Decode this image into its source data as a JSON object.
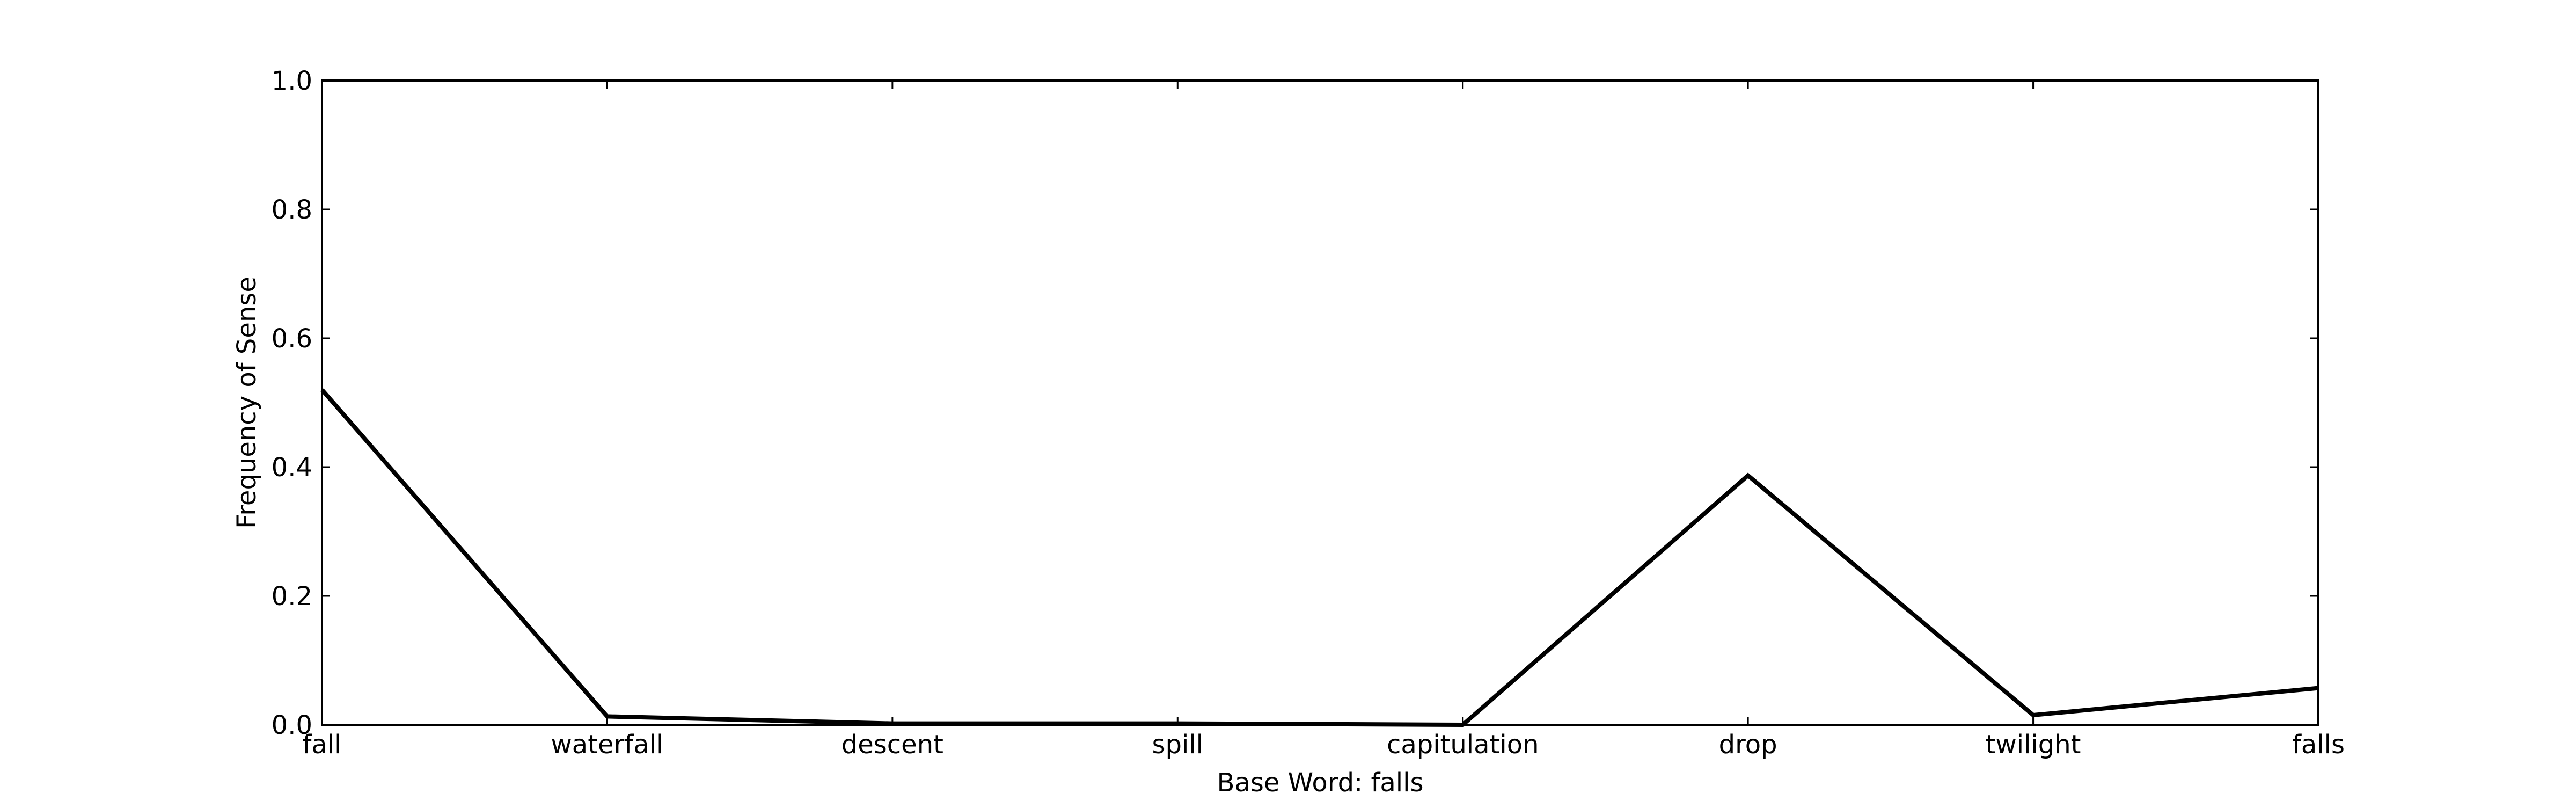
{
  "chart_data": {
    "type": "line",
    "title": "",
    "xlabel": "Base Word: falls",
    "ylabel": "Frequency of Sense",
    "categories": [
      "fall",
      "waterfall",
      "descent",
      "spill",
      "capitulation",
      "drop",
      "twilight",
      "falls"
    ],
    "series": [
      {
        "values": [
          0.52,
          0.013,
          0.002,
          0.002,
          0.0,
          0.387,
          0.015,
          0.057
        ]
      }
    ],
    "ylim": [
      0,
      1.0
    ],
    "yticks": [
      "0.0",
      "0.2",
      "0.4",
      "0.6",
      "0.8",
      "1.0"
    ],
    "grid": false,
    "legend": "none",
    "colors": {
      "line": "#000000",
      "axes": "#000000",
      "background": "#ffffff"
    }
  }
}
